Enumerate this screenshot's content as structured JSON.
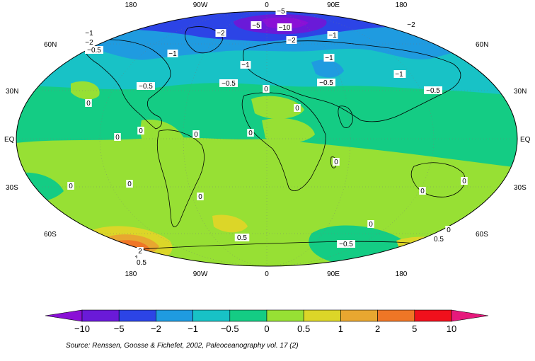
{
  "map": {
    "top_lon_labels": [
      "180",
      "90W",
      "0",
      "90E",
      "180"
    ],
    "bottom_lon_labels": [
      "180",
      "90W",
      "0",
      "90E",
      "180"
    ],
    "left_lat_labels": [
      "60N",
      "30N",
      "EQ",
      "30S",
      "60S"
    ],
    "right_lat_labels": [
      "60N",
      "30N",
      "EQ",
      "30S",
      "60S"
    ],
    "contour_labels": [
      "-5",
      "-5",
      "-10",
      "-2",
      "-2",
      "-1",
      "-2",
      "-1",
      "-0.5",
      "-1",
      "-2",
      "-1",
      "-1",
      "-1",
      "-0.5",
      "-0.5",
      "-0.5",
      "-1",
      "-0.5",
      "0",
      "0",
      "0",
      "0",
      "0",
      "0",
      "0",
      "0",
      "0",
      "0",
      "0",
      "0",
      "0",
      "0",
      "0",
      "0.5",
      "-0.5",
      "0.5",
      "2",
      "1",
      "0.5"
    ]
  },
  "colorbar": {
    "colors": [
      "#8a10d6",
      "#6a1ad8",
      "#2c44e6",
      "#1f9be0",
      "#18c2c6",
      "#14cc84",
      "#97e034",
      "#dcd628",
      "#e8a730",
      "#ef7626",
      "#f0101c",
      "#e6197c"
    ],
    "labels": [
      "−10",
      "−5",
      "−2",
      "−1",
      "−0.5",
      "0",
      "0.5",
      "1",
      "2",
      "5",
      "10"
    ]
  },
  "source": "Source: Renssen, Goosse & Fichefet, 2002, Paleoceanography vol. 17 (2)"
}
